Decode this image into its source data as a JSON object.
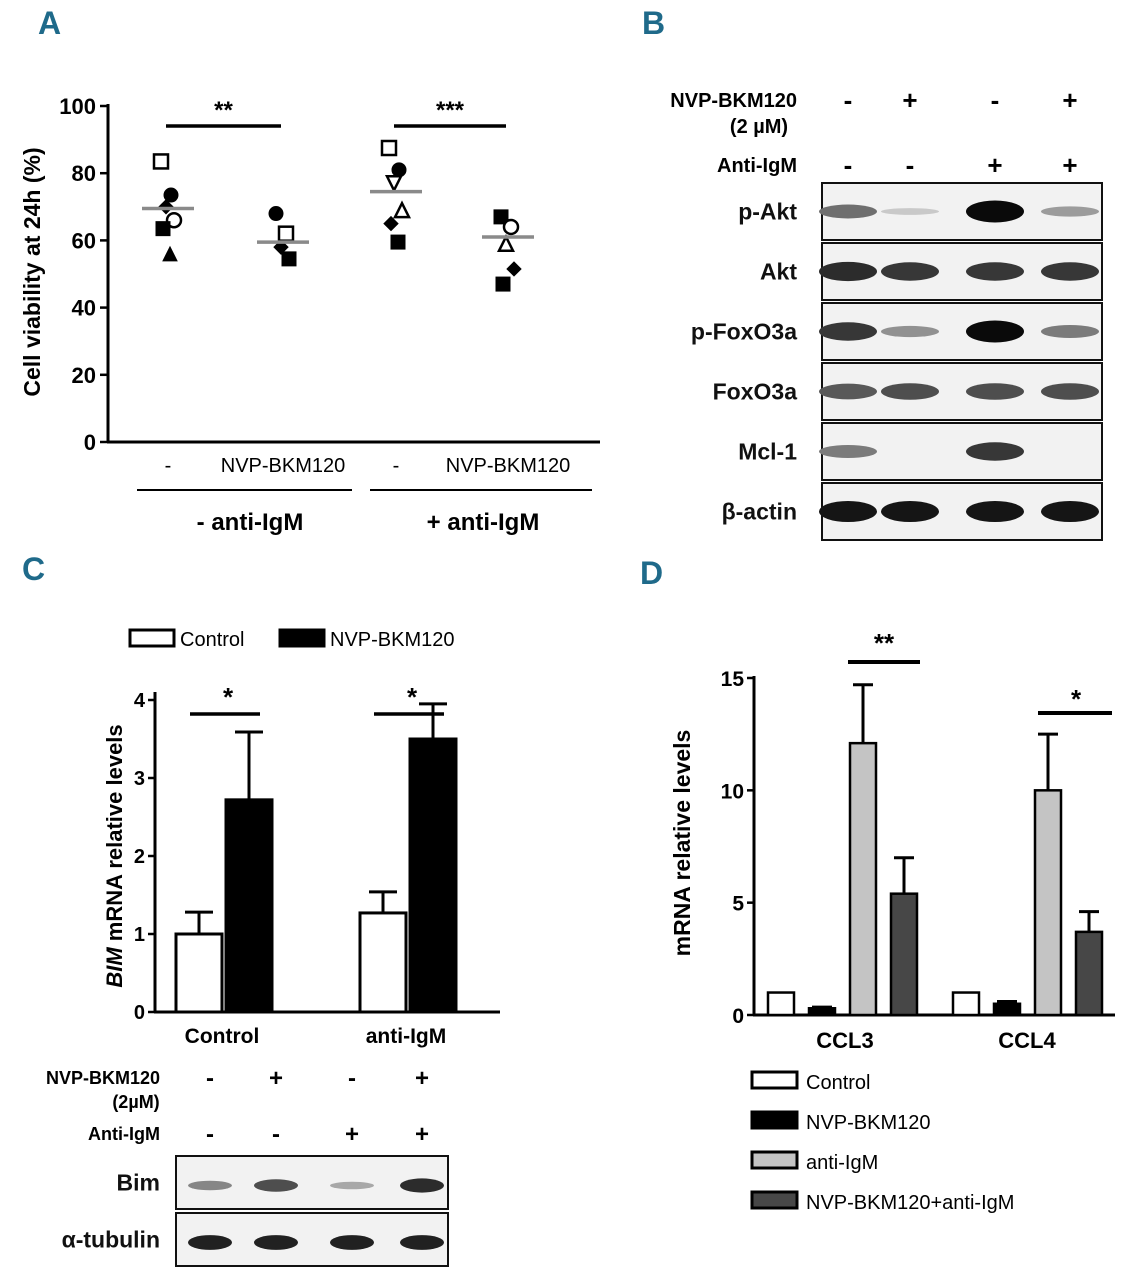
{
  "panels": {
    "A": "A",
    "B": "B",
    "C": "C",
    "D": "D"
  },
  "chart_data": [
    {
      "panel": "A",
      "type": "scatter",
      "ylabel": "Cell viability at 24h (%)",
      "ylim": [
        0,
        100
      ],
      "yticks": [
        "0",
        "20",
        "40",
        "60",
        "80",
        "100"
      ],
      "categories": [
        "-",
        "NVP-BKM120",
        "-",
        "NVP-BKM120"
      ],
      "groups": [
        "- anti-IgM",
        "+ anti-IgM"
      ],
      "means": [
        69.5,
        59.5,
        74.5,
        61
      ],
      "points": [
        [
          {
            "y": 83.5,
            "m": "open-square"
          },
          {
            "y": 73.5,
            "m": "circle"
          },
          {
            "y": 70,
            "m": "diamond"
          },
          {
            "y": 66,
            "m": "open-circle"
          },
          {
            "y": 63.5,
            "m": "square"
          },
          {
            "y": 56,
            "m": "triangle"
          }
        ],
        [
          {
            "y": 68,
            "m": "circle"
          },
          {
            "y": 62,
            "m": "open-square"
          },
          {
            "y": 58,
            "m": "diamond"
          },
          {
            "y": 54.5,
            "m": "square"
          }
        ],
        [
          {
            "y": 87.5,
            "m": "open-square"
          },
          {
            "y": 81,
            "m": "circle"
          },
          {
            "y": 77,
            "m": "open-triangle-down"
          },
          {
            "y": 69,
            "m": "open-triangle"
          },
          {
            "y": 65,
            "m": "diamond"
          },
          {
            "y": 59.5,
            "m": "square"
          }
        ],
        [
          {
            "y": 67,
            "m": "square"
          },
          {
            "y": 64,
            "m": "open-circle"
          },
          {
            "y": 59,
            "m": "open-triangle"
          },
          {
            "y": 51.5,
            "m": "diamond"
          },
          {
            "y": 47,
            "m": "square"
          }
        ]
      ],
      "significance": [
        {
          "from": 0,
          "to": 1,
          "label": "**"
        },
        {
          "from": 2,
          "to": 3,
          "label": "***"
        }
      ]
    },
    {
      "panel": "C",
      "type": "bar",
      "ylabel_italic": "BIM",
      "ylabel_rest": " mRNA relative levels",
      "categories": [
        "Control",
        "anti-IgM"
      ],
      "ylim": [
        0,
        4
      ],
      "yticks": [
        "0",
        "1",
        "2",
        "3",
        "4"
      ],
      "series": [
        {
          "name": "Control",
          "values": [
            1.0,
            1.27
          ],
          "errors": [
            0.28,
            0.27
          ],
          "color": "#ffffff"
        },
        {
          "name": "NVP-BKM120",
          "values": [
            2.72,
            3.5
          ],
          "errors": [
            0.87,
            0.45
          ],
          "color": "#000000"
        }
      ],
      "significance": [
        "*",
        "*"
      ]
    },
    {
      "panel": "D",
      "type": "bar",
      "ylabel": "mRNA relative levels",
      "categories": [
        "CCL3",
        "CCL4"
      ],
      "ylim": [
        0,
        15
      ],
      "yticks": [
        "0",
        "5",
        "10",
        "15"
      ],
      "series": [
        {
          "name": "Control",
          "values": [
            1.0,
            1.0
          ],
          "errors": [
            0,
            0
          ],
          "color": "#ffffff"
        },
        {
          "name": "NVP-BKM120",
          "values": [
            0.3,
            0.5
          ],
          "errors": [
            0.05,
            0.1
          ],
          "color": "#000000"
        },
        {
          "name": "anti-IgM",
          "values": [
            12.1,
            10.0
          ],
          "errors": [
            2.6,
            2.5
          ],
          "color": "#c4c4c4"
        },
        {
          "name": "NVP-BKM120+anti-IgM",
          "values": [
            5.4,
            3.7
          ],
          "errors": [
            1.6,
            0.9
          ],
          "color": "#474747"
        }
      ],
      "significance": [
        "**",
        "*"
      ]
    }
  ],
  "blotB": {
    "treatment1_label": "NVP-BKM120",
    "treatment1_sub": "(2 µM)",
    "treatment1_signs": [
      "-",
      "+",
      "-",
      "+"
    ],
    "treatment2_label": "Anti-IgM",
    "treatment2_signs": [
      "-",
      "-",
      "+",
      "+"
    ],
    "rows": [
      "p-Akt",
      "Akt",
      "p-FoxO3a",
      "FoxO3a",
      "Mcl-1",
      "β-actin"
    ],
    "intensity": [
      [
        0.55,
        0.15,
        1.0,
        0.35
      ],
      [
        0.85,
        0.8,
        0.8,
        0.8
      ],
      [
        0.8,
        0.4,
        1.0,
        0.5
      ],
      [
        0.65,
        0.7,
        0.7,
        0.7
      ],
      [
        0.5,
        0.02,
        0.8,
        0.02
      ],
      [
        0.95,
        0.95,
        0.95,
        0.95
      ]
    ]
  },
  "blotC": {
    "treatment1_label": "NVP-BKM120",
    "treatment1_sub": "(2µM)",
    "treatment1_signs": [
      "-",
      "+",
      "-",
      "+"
    ],
    "treatment2_label": "Anti-IgM",
    "treatment2_signs": [
      "-",
      "-",
      "+",
      "+"
    ],
    "rows": [
      "Bim",
      "α-tubulin"
    ],
    "intensity": [
      [
        0.45,
        0.7,
        0.3,
        0.85
      ],
      [
        0.9,
        0.9,
        0.9,
        0.9
      ]
    ]
  }
}
